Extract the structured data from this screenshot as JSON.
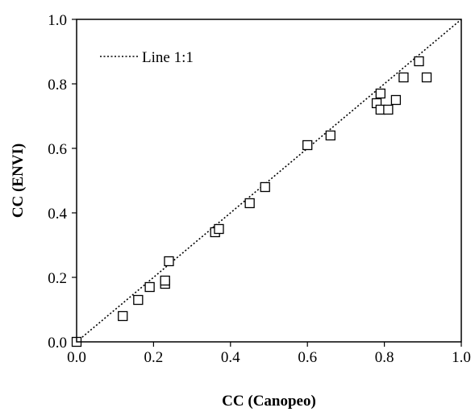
{
  "chart_data": {
    "type": "scatter",
    "xlabel": "CC (Canopeo)",
    "ylabel": "CC (ENVI)",
    "xlim": [
      0,
      1
    ],
    "ylim": [
      0,
      1
    ],
    "xticks": [
      "0.0",
      "0.2",
      "0.4",
      "0.6",
      "0.8",
      "1.0"
    ],
    "yticks": [
      "0.0",
      "0.2",
      "0.4",
      "0.6",
      "0.8",
      "1.0"
    ],
    "grid": false,
    "legend": {
      "position": "top-left",
      "label": "Line 1:1"
    },
    "reference_line": {
      "name": "Line 1:1",
      "from": [
        0,
        0
      ],
      "to": [
        1,
        1
      ],
      "style": "dotted"
    },
    "marker": "open-square",
    "points": [
      {
        "x": 0.0,
        "y": 0.0
      },
      {
        "x": 0.12,
        "y": 0.08
      },
      {
        "x": 0.16,
        "y": 0.13
      },
      {
        "x": 0.19,
        "y": 0.17
      },
      {
        "x": 0.23,
        "y": 0.18
      },
      {
        "x": 0.23,
        "y": 0.19
      },
      {
        "x": 0.24,
        "y": 0.25
      },
      {
        "x": 0.36,
        "y": 0.34
      },
      {
        "x": 0.37,
        "y": 0.35
      },
      {
        "x": 0.45,
        "y": 0.43
      },
      {
        "x": 0.49,
        "y": 0.48
      },
      {
        "x": 0.6,
        "y": 0.61
      },
      {
        "x": 0.66,
        "y": 0.64
      },
      {
        "x": 0.78,
        "y": 0.74
      },
      {
        "x": 0.79,
        "y": 0.72
      },
      {
        "x": 0.79,
        "y": 0.77
      },
      {
        "x": 0.81,
        "y": 0.72
      },
      {
        "x": 0.83,
        "y": 0.75
      },
      {
        "x": 0.85,
        "y": 0.82
      },
      {
        "x": 0.89,
        "y": 0.87
      },
      {
        "x": 0.91,
        "y": 0.82
      }
    ]
  }
}
